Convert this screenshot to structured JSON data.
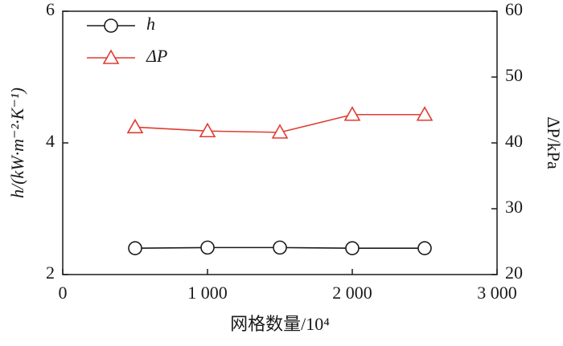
{
  "chart_data": {
    "type": "line",
    "x_label": "网格数量/10⁴",
    "y_label": "h/(kW·m⁻²·K⁻¹)",
    "y2_label": "ΔP/kPa",
    "x": [
      500,
      1000,
      1500,
      2000,
      2500
    ],
    "series": [
      {
        "name": "h",
        "color": "#1a1a1a",
        "marker": "circle",
        "values": [
          2.4,
          2.41,
          2.41,
          2.4,
          2.4
        ]
      },
      {
        "name": "ΔP",
        "color": "#e03c31",
        "marker": "triangle",
        "axis": "y2",
        "values": [
          42.4,
          41.8,
          41.6,
          44.3,
          44.3
        ]
      }
    ],
    "xlim": [
      0,
      3000
    ],
    "xticks": [
      0,
      {
        "value": 1000,
        "label": "1 000"
      },
      {
        "value": 2000,
        "label": "2 000"
      },
      {
        "value": 3000,
        "label": "3 000"
      }
    ],
    "ylim": [
      2,
      6
    ],
    "yticks": [
      2,
      4,
      6
    ],
    "y2lim": [
      20,
      60
    ],
    "y2ticks": [
      20,
      30,
      40,
      50,
      60
    ],
    "legend": "upper left"
  }
}
